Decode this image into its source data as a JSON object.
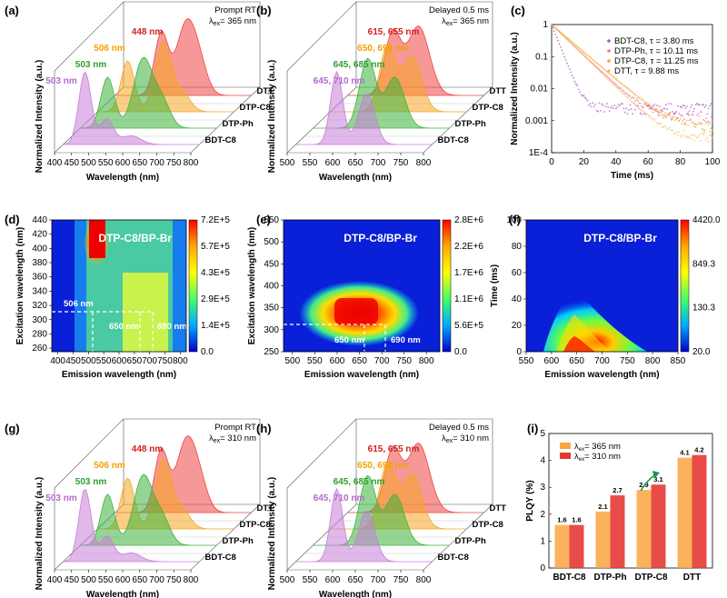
{
  "colors": {
    "BDT-C8": "#c77dd8",
    "DTP-Ph": "#3db33d",
    "DTP-C8": "#f5a623",
    "DTT": "#ef4444",
    "bar365": "#f9a640",
    "bar310": "#e53935"
  },
  "panels": {
    "a": {
      "label": "(a)",
      "condition": "Prompt RT",
      "excitation": "365 nm",
      "peaks": [
        {
          "text": "448 nm",
          "color": "#d42020"
        },
        {
          "text": "506 nm",
          "color": "#f5a000"
        },
        {
          "text": "503 nm",
          "color": "#2e9e2e"
        },
        {
          "text": "503 nm",
          "color": "#b36ad0"
        }
      ],
      "xlabel": "Wavelength (nm)",
      "ylabel": "Normalized Intensity (a.u.)",
      "ticks": [
        "400",
        "450",
        "500",
        "550",
        "600",
        "650",
        "700",
        "750",
        "800"
      ]
    },
    "b": {
      "label": "(b)",
      "condition": "Delayed 0.5 ms",
      "excitation": "365 nm",
      "peaks": [
        {
          "text": "615, 655 nm",
          "color": "#d42020"
        },
        {
          "text": "650, 690 nm",
          "color": "#f5a000"
        },
        {
          "text": "645, 685 nm",
          "color": "#2e9e2e"
        },
        {
          "text": "645, 710 nm",
          "color": "#b36ad0"
        }
      ],
      "xlabel": "Wavelength (nm)",
      "ylabel": "Normalized Intensity (a.u.)",
      "ticks": [
        "500",
        "550",
        "600",
        "650",
        "700",
        "750",
        "800"
      ]
    },
    "g": {
      "label": "(g)",
      "condition": "Prompt RT",
      "excitation": "310 nm",
      "peaks": [
        {
          "text": "448 nm",
          "color": "#d42020"
        },
        {
          "text": "506 nm",
          "color": "#f5a000"
        },
        {
          "text": "503 nm",
          "color": "#2e9e2e"
        },
        {
          "text": "503 nm",
          "color": "#b36ad0"
        }
      ],
      "xlabel": "Wavelength (nm)",
      "ylabel": "Normalized Intensity (a.u.)",
      "ticks": [
        "400",
        "450",
        "500",
        "550",
        "600",
        "650",
        "700",
        "750",
        "800"
      ]
    },
    "h": {
      "label": "(h)",
      "condition": "Delayed 0.5 ms",
      "excitation": "310 nm",
      "peaks": [
        {
          "text": "615, 655 nm",
          "color": "#d42020"
        },
        {
          "text": "650, 690 nm",
          "color": "#f5a000"
        },
        {
          "text": "645, 685 nm",
          "color": "#2e9e2e"
        },
        {
          "text": "645, 710 nm",
          "color": "#b36ad0"
        }
      ],
      "xlabel": "Wavelength (nm)",
      "ylabel": "Normalized Intensity (a.u.)",
      "ticks": [
        "500",
        "550",
        "600",
        "650",
        "700",
        "750",
        "800"
      ]
    },
    "series_names": [
      "DTT",
      "DTP-C8",
      "DTP-Ph",
      "BDT-C8"
    ],
    "c": {
      "label": "(c)",
      "xlabel": "Time (ms)",
      "ylabel": "Normalized Intensity (a.u.)",
      "xticks": [
        "0",
        "20",
        "40",
        "60",
        "80",
        "100"
      ],
      "yticks": [
        "1",
        "0.1",
        "0.01",
        "0.001",
        "1E-4"
      ],
      "legend": [
        "BDT-C8, τ = 3.80 ms",
        "DTP-Ph, τ = 10.11 ms",
        "DTP-C8, τ = 11.25 ms",
        "DTT, τ = 9.88 ms"
      ]
    },
    "d": {
      "label": "(d)",
      "title": "DTP-C8/BP-Br",
      "xlabel": "Emission wavelength (nm)",
      "ylabel": "Excitation wavelength (nm)",
      "xticks": [
        "400",
        "450",
        "500",
        "550",
        "600",
        "650",
        "700",
        "750",
        "800"
      ],
      "yticks": [
        "260",
        "280",
        "300",
        "320",
        "340",
        "360",
        "380",
        "400",
        "420",
        "440"
      ],
      "colorbar": [
        "7.2E+5",
        "5.7E+5",
        "4.3E+5",
        "2.9E+5",
        "1.4E+5",
        "0.0"
      ],
      "annotations": [
        "506 nm",
        "650 nm",
        "690 nm"
      ]
    },
    "e": {
      "label": "(e)",
      "title": "DTP-C8/BP-Br",
      "xlabel": "Emission wavelength (nm)",
      "ylabel": "Excitation wavelength (nm)",
      "xticks": [
        "500",
        "550",
        "600",
        "650",
        "700",
        "750",
        "800"
      ],
      "yticks": [
        "250",
        "300",
        "350",
        "400",
        "450",
        "500",
        "550"
      ],
      "colorbar": [
        "2.8E+6",
        "2.2E+6",
        "1.7E+6",
        "1.1E+6",
        "5.6E+5",
        "0.0"
      ],
      "annotations": [
        "650 nm",
        "690 nm"
      ]
    },
    "f": {
      "label": "(f)",
      "title": "DTP-C8/BP-Br",
      "xlabel": "Emission wavelength (nm)",
      "ylabel": "Time (ms)",
      "xticks": [
        "550",
        "600",
        "650",
        "700",
        "750",
        "800",
        "850"
      ],
      "yticks": [
        "0",
        "20",
        "40",
        "60",
        "80",
        "100"
      ],
      "colorbar": [
        "4420.0",
        "849.3",
        "130.3",
        "20.0"
      ]
    },
    "i": {
      "label": "(i)",
      "ylabel": "PLQY (%)",
      "yticks": [
        "0",
        "1",
        "2",
        "3",
        "4",
        "5"
      ],
      "legend": [
        "λex= 365 nm",
        "λex= 310 nm"
      ]
    }
  },
  "chart_data": [
    {
      "panel": "a",
      "type": "line",
      "title": "Prompt RT, λex = 365 nm",
      "xlabel": "Wavelength (nm)",
      "ylabel": "Normalized Intensity (a.u.)",
      "xlim": [
        380,
        820
      ],
      "series": [
        {
          "name": "DTT",
          "peak_nm": 448
        },
        {
          "name": "DTP-C8",
          "peak_nm": 506
        },
        {
          "name": "DTP-Ph",
          "peak_nm": 503
        },
        {
          "name": "BDT-C8",
          "peak_nm": 503
        }
      ]
    },
    {
      "panel": "b",
      "type": "line",
      "title": "Delayed 0.5 ms, λex = 365 nm",
      "xlabel": "Wavelength (nm)",
      "ylabel": "Normalized Intensity (a.u.)",
      "xlim": [
        500,
        820
      ],
      "series": [
        {
          "name": "DTT",
          "peaks_nm": [
            615,
            655
          ]
        },
        {
          "name": "DTP-C8",
          "peaks_nm": [
            650,
            690
          ]
        },
        {
          "name": "DTP-Ph",
          "peaks_nm": [
            645,
            685
          ]
        },
        {
          "name": "BDT-C8",
          "peaks_nm": [
            645,
            710
          ]
        }
      ]
    },
    {
      "panel": "c",
      "type": "scatter",
      "xlabel": "Time (ms)",
      "ylabel": "Normalized Intensity (a.u.)",
      "xlim": [
        0,
        100
      ],
      "ylim": [
        0.0001,
        1
      ],
      "yscale": "log",
      "series": [
        {
          "name": "BDT-C8",
          "tau_ms": 3.8
        },
        {
          "name": "DTP-Ph",
          "tau_ms": 10.11
        },
        {
          "name": "DTP-C8",
          "tau_ms": 11.25
        },
        {
          "name": "DTT",
          "tau_ms": 9.88
        }
      ]
    },
    {
      "panel": "d",
      "type": "heatmap",
      "title": "DTP-C8/BP-Br",
      "xlabel": "Emission wavelength (nm)",
      "ylabel": "Excitation wavelength (nm)",
      "xlim": [
        380,
        820
      ],
      "ylim": [
        255,
        440
      ],
      "zlim": [
        0,
        720000
      ],
      "marked_excitation_nm": 310,
      "marked_emission_nm": [
        506,
        650,
        690
      ]
    },
    {
      "panel": "e",
      "type": "heatmap",
      "title": "DTP-C8/BP-Br",
      "xlabel": "Emission wavelength (nm)",
      "ylabel": "Excitation wavelength (nm)",
      "xlim": [
        480,
        830
      ],
      "ylim": [
        250,
        550
      ],
      "zlim": [
        0,
        2800000
      ],
      "marked_excitation_nm": 310,
      "marked_emission_nm": [
        650,
        690
      ]
    },
    {
      "panel": "f",
      "type": "heatmap",
      "title": "DTP-C8/BP-Br",
      "xlabel": "Emission wavelength (nm)",
      "ylabel": "Time (ms)",
      "xlim": [
        550,
        850
      ],
      "ylim": [
        0,
        100
      ],
      "zlim": [
        20,
        4420
      ],
      "zscale": "log"
    },
    {
      "panel": "g",
      "type": "line",
      "title": "Prompt RT, λex = 310 nm",
      "xlabel": "Wavelength (nm)",
      "ylabel": "Normalized Intensity (a.u.)",
      "xlim": [
        380,
        820
      ],
      "series": [
        {
          "name": "DTT",
          "peak_nm": 448
        },
        {
          "name": "DTP-C8",
          "peak_nm": 506
        },
        {
          "name": "DTP-Ph",
          "peak_nm": 503
        },
        {
          "name": "BDT-C8",
          "peak_nm": 503
        }
      ]
    },
    {
      "panel": "h",
      "type": "line",
      "title": "Delayed 0.5 ms, λex = 310 nm",
      "xlabel": "Wavelength (nm)",
      "ylabel": "Normalized Intensity (a.u.)",
      "xlim": [
        500,
        820
      ],
      "series": [
        {
          "name": "DTT",
          "peaks_nm": [
            615,
            655
          ]
        },
        {
          "name": "DTP-C8",
          "peaks_nm": [
            650,
            690
          ]
        },
        {
          "name": "DTP-Ph",
          "peaks_nm": [
            645,
            685
          ]
        },
        {
          "name": "BDT-C8",
          "peaks_nm": [
            645,
            710
          ]
        }
      ]
    },
    {
      "panel": "i",
      "type": "bar",
      "ylabel": "PLQY (%)",
      "ylim": [
        0,
        5
      ],
      "categories": [
        "BDT-C8",
        "DTP-Ph",
        "DTP-C8",
        "DTT"
      ],
      "series": [
        {
          "name": "λex= 365 nm",
          "values": [
            1.6,
            2.1,
            2.9,
            4.1
          ]
        },
        {
          "name": "λex= 310 nm",
          "values": [
            1.6,
            2.7,
            3.1,
            4.2
          ]
        }
      ]
    }
  ]
}
